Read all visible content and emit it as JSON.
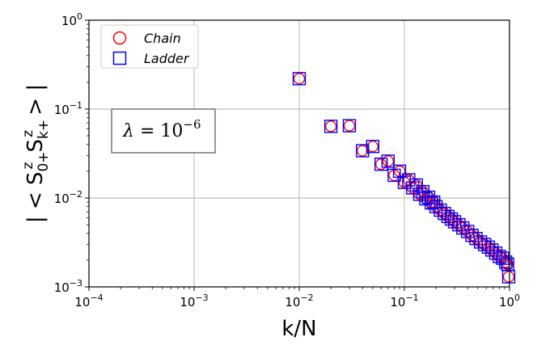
{
  "chart_data": {
    "type": "scatter",
    "title": "",
    "xscale": "log",
    "yscale": "log",
    "xlim": [
      0.0001,
      1
    ],
    "ylim": [
      0.001,
      1
    ],
    "grid": true,
    "xlabel": "k/N",
    "ylabel": "| < S_0+^z S_k+^z > |",
    "ylabel_parts": {
      "pre": "| < ",
      "s1": "S",
      "s1_sub": "0",
      "s1_subplus": "+",
      "s1_sup": "z",
      "s2": "S",
      "s2_sub": "k",
      "s2_subplus": "+",
      "s2_sup": "z",
      "post": " > |"
    },
    "x_ticks": [
      {
        "value": 0.0001,
        "base": "10",
        "exp": "−4"
      },
      {
        "value": 0.001,
        "base": "10",
        "exp": "−3"
      },
      {
        "value": 0.01,
        "base": "10",
        "exp": "−2"
      },
      {
        "value": 0.1,
        "base": "10",
        "exp": "−1"
      },
      {
        "value": 1,
        "base": "10",
        "exp": "0"
      }
    ],
    "y_ticks": [
      {
        "value": 0.001,
        "base": "10",
        "exp": "−3"
      },
      {
        "value": 0.01,
        "base": "10",
        "exp": "−2"
      },
      {
        "value": 0.1,
        "base": "10",
        "exp": "−1"
      },
      {
        "value": 1,
        "base": "10",
        "exp": "0"
      }
    ],
    "legend": {
      "position": "top-left",
      "entries": [
        {
          "name": "Chain",
          "marker": "circle",
          "color": "#ff0000"
        },
        {
          "name": "Ladder",
          "marker": "square",
          "color": "#0000ff"
        }
      ]
    },
    "annotation": {
      "lhs": "λ",
      "eq": " = ",
      "base": "10",
      "exp": "−6"
    },
    "series": [
      {
        "name": "Chain",
        "marker": "circle",
        "color": "#ff0000",
        "x": [
          0.01,
          0.02,
          0.03,
          0.04,
          0.05,
          0.06,
          0.07,
          0.08,
          0.09,
          0.1,
          0.11,
          0.12,
          0.13,
          0.14,
          0.15,
          0.16,
          0.17,
          0.18,
          0.19,
          0.2,
          0.22,
          0.24,
          0.26,
          0.28,
          0.3,
          0.33,
          0.36,
          0.4,
          0.44,
          0.48,
          0.53,
          0.58,
          0.63,
          0.68,
          0.74,
          0.8,
          0.86,
          0.92,
          0.96,
          1.0
        ],
        "y": [
          0.22,
          0.064,
          0.065,
          0.034,
          0.038,
          0.024,
          0.026,
          0.018,
          0.02,
          0.015,
          0.016,
          0.013,
          0.014,
          0.011,
          0.0118,
          0.0098,
          0.0102,
          0.0088,
          0.009,
          0.008,
          0.0073,
          0.0067,
          0.0062,
          0.0058,
          0.0054,
          0.005,
          0.0046,
          0.0042,
          0.0038,
          0.0035,
          0.0032,
          0.003,
          0.0028,
          0.0026,
          0.0024,
          0.0022,
          0.0021,
          0.0019,
          0.0018,
          0.0013
        ]
      },
      {
        "name": "Ladder",
        "marker": "square",
        "color": "#0000ff",
        "x": [
          0.01,
          0.02,
          0.03,
          0.04,
          0.05,
          0.06,
          0.07,
          0.08,
          0.09,
          0.1,
          0.11,
          0.12,
          0.13,
          0.14,
          0.15,
          0.16,
          0.17,
          0.18,
          0.19,
          0.2,
          0.22,
          0.24,
          0.26,
          0.28,
          0.3,
          0.33,
          0.36,
          0.4,
          0.44,
          0.48,
          0.53,
          0.58,
          0.63,
          0.68,
          0.74,
          0.8,
          0.86,
          0.92,
          0.96,
          1.0
        ],
        "y": [
          0.22,
          0.064,
          0.065,
          0.034,
          0.038,
          0.024,
          0.026,
          0.018,
          0.02,
          0.015,
          0.016,
          0.013,
          0.014,
          0.011,
          0.0118,
          0.0098,
          0.0102,
          0.0088,
          0.009,
          0.008,
          0.0073,
          0.0067,
          0.0062,
          0.0058,
          0.0054,
          0.005,
          0.0046,
          0.0042,
          0.0038,
          0.0035,
          0.0032,
          0.003,
          0.0028,
          0.0026,
          0.0024,
          0.0022,
          0.0021,
          0.0019,
          0.0018,
          0.0013
        ]
      }
    ]
  }
}
